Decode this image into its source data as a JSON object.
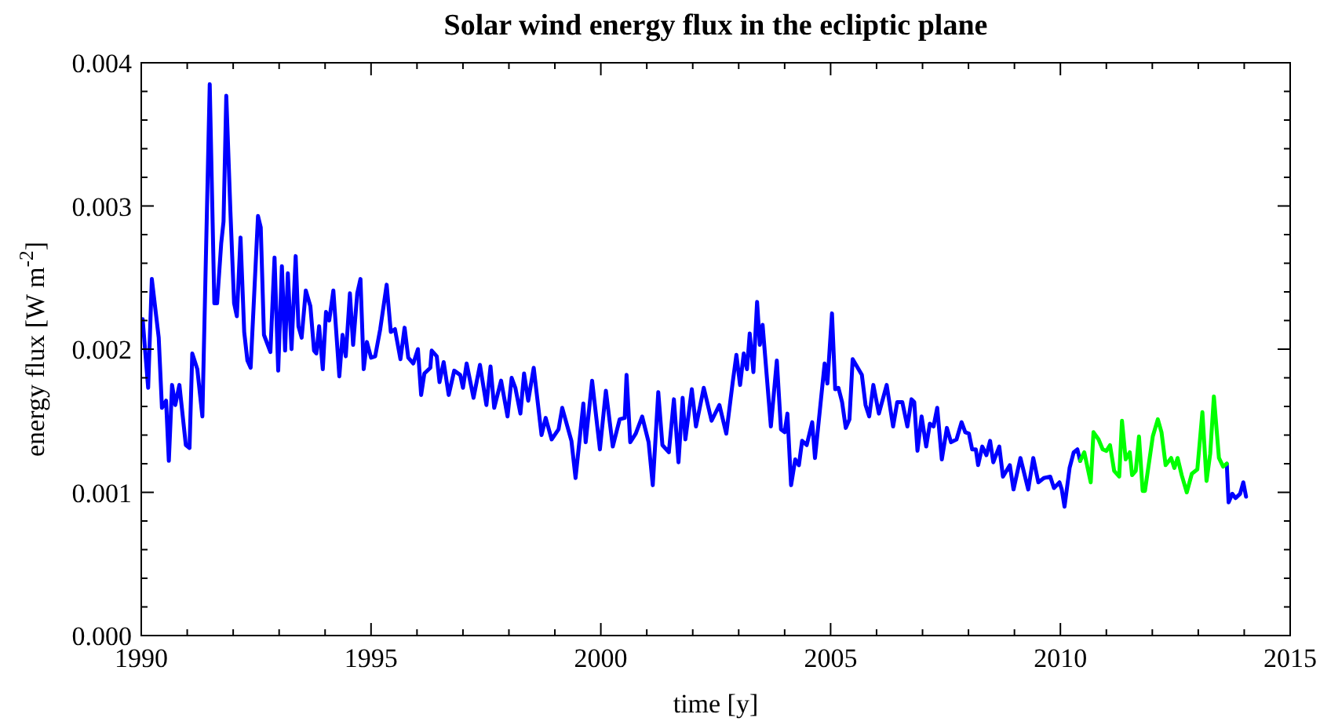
{
  "chart_data": {
    "type": "line",
    "title": "Solar wind energy flux in the ecliptic plane",
    "xlabel": "time [y]",
    "ylabel": "energy flux  [W m$^{-2}$]",
    "xlim": [
      1990,
      2015
    ],
    "xticks": [
      1990,
      {
        "value": 1991,
        "label": null
      },
      {
        "value": 1992,
        "label": null
      },
      {
        "value": 1993,
        "label": null
      },
      {
        "value": 1994,
        "label": null
      },
      1995,
      {
        "value": 1996,
        "label": null
      },
      {
        "value": 1997,
        "label": null
      },
      {
        "value": 1998,
        "label": null
      },
      {
        "value": 1999,
        "label": null
      },
      2000,
      {
        "value": 2001,
        "label": null
      },
      {
        "value": 2002,
        "label": null
      },
      {
        "value": 2003,
        "label": null
      },
      {
        "value": 2004,
        "label": null
      },
      2005,
      {
        "value": 2006,
        "label": null
      },
      {
        "value": 2007,
        "label": null
      },
      {
        "value": 2008,
        "label": null
      },
      {
        "value": 2009,
        "label": null
      },
      2010,
      {
        "value": 2011,
        "label": null
      },
      {
        "value": 2012,
        "label": null
      },
      {
        "value": 2013,
        "label": null
      },
      {
        "value": 2014,
        "label": null
      },
      2015
    ],
    "ylim": [
      0,
      0.004
    ],
    "yticks": [
      {
        "value": 0,
        "label": "0.000"
      },
      {
        "value": 0.0002,
        "label": null
      },
      {
        "value": 0.0004,
        "label": null
      },
      {
        "value": 0.0006,
        "label": null
      },
      {
        "value": 0.0008,
        "label": null
      },
      {
        "value": 0.001,
        "label": "0.001"
      },
      {
        "value": 0.0012,
        "label": null
      },
      {
        "value": 0.0014,
        "label": null
      },
      {
        "value": 0.0016,
        "label": null
      },
      {
        "value": 0.0018,
        "label": null
      },
      {
        "value": 0.002,
        "label": "0.002"
      },
      {
        "value": 0.0022,
        "label": null
      },
      {
        "value": 0.0024,
        "label": null
      },
      {
        "value": 0.0026,
        "label": null
      },
      {
        "value": 0.0028,
        "label": null
      },
      {
        "value": 0.003,
        "label": "0.003"
      },
      {
        "value": 0.0032,
        "label": null
      },
      {
        "value": 0.0034,
        "label": null
      },
      {
        "value": 0.0036,
        "label": null
      },
      {
        "value": 0.0038,
        "label": null
      },
      {
        "value": 0.004,
        "label": "0.004"
      }
    ],
    "grid": false,
    "marker": "none",
    "line_style": "solid",
    "series": [
      {
        "color": "#0000ff",
        "x": [
          1990.03,
          1990.15,
          1990.23,
          1990.38,
          1990.45,
          1990.54,
          1990.6,
          1990.67,
          1990.74,
          1990.83,
          1990.97,
          1991.05,
          1991.11,
          1991.22,
          1991.33,
          1991.49,
          1991.59,
          1991.65,
          1991.74,
          1991.79,
          1991.85,
          1991.94,
          1992.02,
          1992.08,
          1992.16,
          1992.24,
          1992.31,
          1992.38,
          1992.54,
          1992.6,
          1992.67,
          1992.81,
          1992.9,
          1992.98,
          1993.06,
          1993.13,
          1993.19,
          1993.27,
          1993.36,
          1993.42,
          1993.49,
          1993.58,
          1993.68,
          1993.76,
          1993.81,
          1993.87,
          1993.95,
          1994.02,
          1994.09,
          1994.18,
          1994.31,
          1994.38,
          1994.45,
          1994.54,
          1994.61,
          1994.7,
          1994.77,
          1994.84,
          1994.91,
          1995.0,
          1995.09,
          1995.2,
          1995.34,
          1995.43,
          1995.52,
          1995.64,
          1995.73,
          1995.81,
          1995.92,
          1996.02,
          1996.09,
          1996.16,
          1996.29,
          1996.32,
          1996.43,
          1996.49,
          1996.58,
          1996.69,
          1996.81,
          1996.94,
          1997.0,
          1997.08,
          1997.23,
          1997.37,
          1997.51,
          1997.6,
          1997.68,
          1997.83,
          1997.97,
          1998.06,
          1998.14,
          1998.25,
          1998.33,
          1998.42,
          1998.54,
          1998.71,
          1998.8,
          1998.93,
          1999.08,
          1999.16,
          1999.36,
          1999.45,
          1999.62,
          1999.67,
          1999.81,
          1999.98,
          2000.11,
          2000.26,
          2000.41,
          2000.52,
          2000.56,
          2000.64,
          2000.76,
          2000.9,
          2001.04,
          2001.13,
          2001.25,
          2001.34,
          2001.48,
          2001.59,
          2001.69,
          2001.78,
          2001.84,
          2001.98,
          2002.07,
          2002.24,
          2002.41,
          2002.58,
          2002.73,
          2002.87,
          2002.95,
          2003.03,
          2003.11,
          2003.18,
          2003.24,
          2003.32,
          2003.4,
          2003.46,
          2003.52,
          2003.7,
          2003.83,
          2003.92,
          2004.0,
          2004.06,
          2004.14,
          2004.23,
          2004.31,
          2004.38,
          2004.48,
          2004.6,
          2004.66,
          2004.87,
          2004.93,
          2005.03,
          2005.1,
          2005.17,
          2005.25,
          2005.33,
          2005.41,
          2005.48,
          2005.68,
          2005.76,
          2005.84,
          2005.93,
          2006.05,
          2006.22,
          2006.36,
          2006.45,
          2006.56,
          2006.67,
          2006.76,
          2006.82,
          2006.89,
          2006.98,
          2007.08,
          2007.16,
          2007.24,
          2007.32,
          2007.42,
          2007.53,
          2007.62,
          2007.74,
          2007.85,
          2007.93,
          2008.01,
          2008.08,
          2008.16,
          2008.21,
          2008.3,
          2008.39,
          2008.47,
          2008.54,
          2008.67,
          2008.75,
          2008.9,
          2008.98,
          2009.13,
          2009.3,
          2009.41,
          2009.52,
          2009.64,
          2009.78,
          2009.86,
          2009.98,
          2010.03,
          2010.09,
          2010.2,
          2010.29,
          2010.37,
          2010.43,
          2012.0,
          2013.62,
          2013.66,
          2013.74,
          2013.81,
          2013.91,
          2013.98,
          2014.04
        ],
        "values": [
          0.00221,
          0.00173,
          0.00249,
          0.00208,
          0.00159,
          0.00164,
          0.00122,
          0.00175,
          0.00161,
          0.00175,
          0.00133,
          0.00131,
          0.00197,
          0.00186,
          0.00153,
          0.00385,
          0.00232,
          0.00232,
          0.00274,
          0.00289,
          0.00377,
          0.00296,
          0.00232,
          0.00223,
          0.00278,
          0.00212,
          0.00192,
          0.00187,
          0.00293,
          0.00285,
          0.0021,
          0.00198,
          0.00264,
          0.00185,
          0.00258,
          0.00199,
          0.00253,
          0.002,
          0.00265,
          0.00216,
          0.00208,
          0.00241,
          0.0023,
          0.00199,
          0.00197,
          0.00216,
          0.00186,
          0.00226,
          0.0022,
          0.00241,
          0.00181,
          0.0021,
          0.00195,
          0.00239,
          0.00203,
          0.00239,
          0.00249,
          0.00186,
          0.00205,
          0.00194,
          0.00195,
          0.00214,
          0.00245,
          0.00212,
          0.00214,
          0.00193,
          0.00215,
          0.00194,
          0.0019,
          0.002,
          0.00168,
          0.00183,
          0.00187,
          0.00199,
          0.00195,
          0.00177,
          0.00191,
          0.00168,
          0.00185,
          0.00182,
          0.00173,
          0.0019,
          0.00166,
          0.00189,
          0.00161,
          0.00188,
          0.00159,
          0.00178,
          0.00153,
          0.0018,
          0.00173,
          0.00155,
          0.00183,
          0.00164,
          0.00187,
          0.0014,
          0.00152,
          0.00137,
          0.00144,
          0.00159,
          0.00136,
          0.0011,
          0.00162,
          0.00135,
          0.00178,
          0.0013,
          0.00171,
          0.00132,
          0.00151,
          0.00152,
          0.00182,
          0.00135,
          0.00141,
          0.00153,
          0.00135,
          0.00105,
          0.0017,
          0.00133,
          0.00128,
          0.00165,
          0.00121,
          0.00166,
          0.00137,
          0.00172,
          0.00146,
          0.00173,
          0.0015,
          0.00161,
          0.00141,
          0.00177,
          0.00196,
          0.00175,
          0.00197,
          0.00186,
          0.00211,
          0.00184,
          0.00233,
          0.00203,
          0.00217,
          0.00146,
          0.00192,
          0.00144,
          0.00142,
          0.00155,
          0.00105,
          0.00123,
          0.00119,
          0.00136,
          0.00133,
          0.00149,
          0.00124,
          0.0019,
          0.00176,
          0.00225,
          0.00172,
          0.00173,
          0.00163,
          0.00145,
          0.00151,
          0.00193,
          0.00182,
          0.00161,
          0.00153,
          0.00175,
          0.00155,
          0.00175,
          0.00146,
          0.00163,
          0.00163,
          0.00146,
          0.00165,
          0.00163,
          0.00129,
          0.00153,
          0.00132,
          0.00148,
          0.00146,
          0.00159,
          0.00123,
          0.00145,
          0.00135,
          0.00137,
          0.00149,
          0.00142,
          0.00141,
          0.0013,
          0.0013,
          0.00119,
          0.00132,
          0.00126,
          0.00136,
          0.00121,
          0.00132,
          0.00111,
          0.00119,
          0.00102,
          0.00124,
          0.00102,
          0.00124,
          0.00107,
          0.0011,
          0.00111,
          0.00103,
          0.00107,
          0.00102,
          0.0009,
          0.00117,
          0.00128,
          0.0013,
          0.00122,
          null,
          0.0012,
          0.00093,
          0.00099,
          0.00096,
          0.00099,
          0.00107,
          0.00097
        ]
      },
      {
        "color": "#00ff00",
        "x": [
          2010.43,
          2010.52,
          2010.66,
          2010.72,
          2010.83,
          2010.92,
          2011.0,
          2011.08,
          2011.17,
          2011.28,
          2011.34,
          2011.42,
          2011.51,
          2011.56,
          2011.64,
          2011.71,
          2011.79,
          2011.84,
          2012.01,
          2012.12,
          2012.2,
          2012.29,
          2012.41,
          2012.48,
          2012.55,
          2012.64,
          2012.75,
          2012.86,
          2012.98,
          2013.09,
          2013.18,
          2013.26,
          2013.34,
          2013.45,
          2013.54,
          2013.62
        ],
        "values": [
          0.00122,
          0.00128,
          0.00107,
          0.00142,
          0.00137,
          0.0013,
          0.00129,
          0.00133,
          0.00115,
          0.00111,
          0.0015,
          0.00123,
          0.00128,
          0.00112,
          0.00115,
          0.00139,
          0.00101,
          0.00101,
          0.00139,
          0.00151,
          0.00142,
          0.00119,
          0.00124,
          0.00117,
          0.00124,
          0.00112,
          0.001,
          0.00113,
          0.00116,
          0.00156,
          0.00108,
          0.00127,
          0.00167,
          0.00124,
          0.00118,
          0.0012
        ]
      }
    ]
  }
}
